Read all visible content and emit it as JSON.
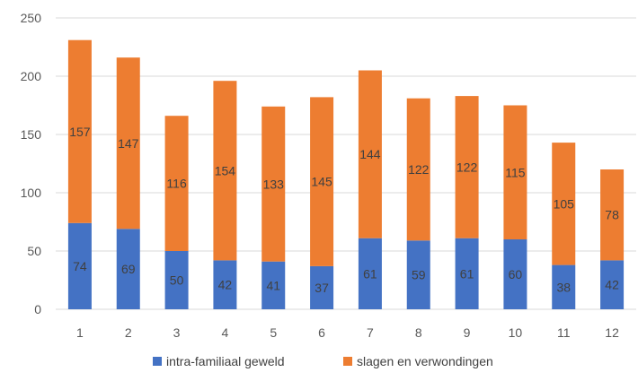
{
  "chart_data": {
    "type": "bar",
    "stacked": true,
    "categories": [
      "1",
      "2",
      "3",
      "4",
      "5",
      "6",
      "7",
      "8",
      "9",
      "10",
      "11",
      "12"
    ],
    "series": [
      {
        "name": "intra-familiaal geweld",
        "color": "#4472c4",
        "values": [
          74,
          69,
          50,
          42,
          41,
          37,
          61,
          59,
          61,
          60,
          38,
          42
        ]
      },
      {
        "name": "slagen en verwondingen",
        "color": "#ed7d31",
        "values": [
          157,
          147,
          116,
          154,
          133,
          145,
          144,
          122,
          122,
          115,
          105,
          78
        ]
      }
    ],
    "ylim": [
      0,
      250
    ],
    "yticks": [
      0,
      50,
      100,
      150,
      200,
      250
    ],
    "grid": true,
    "legend": "bottom",
    "data_labels": true
  }
}
